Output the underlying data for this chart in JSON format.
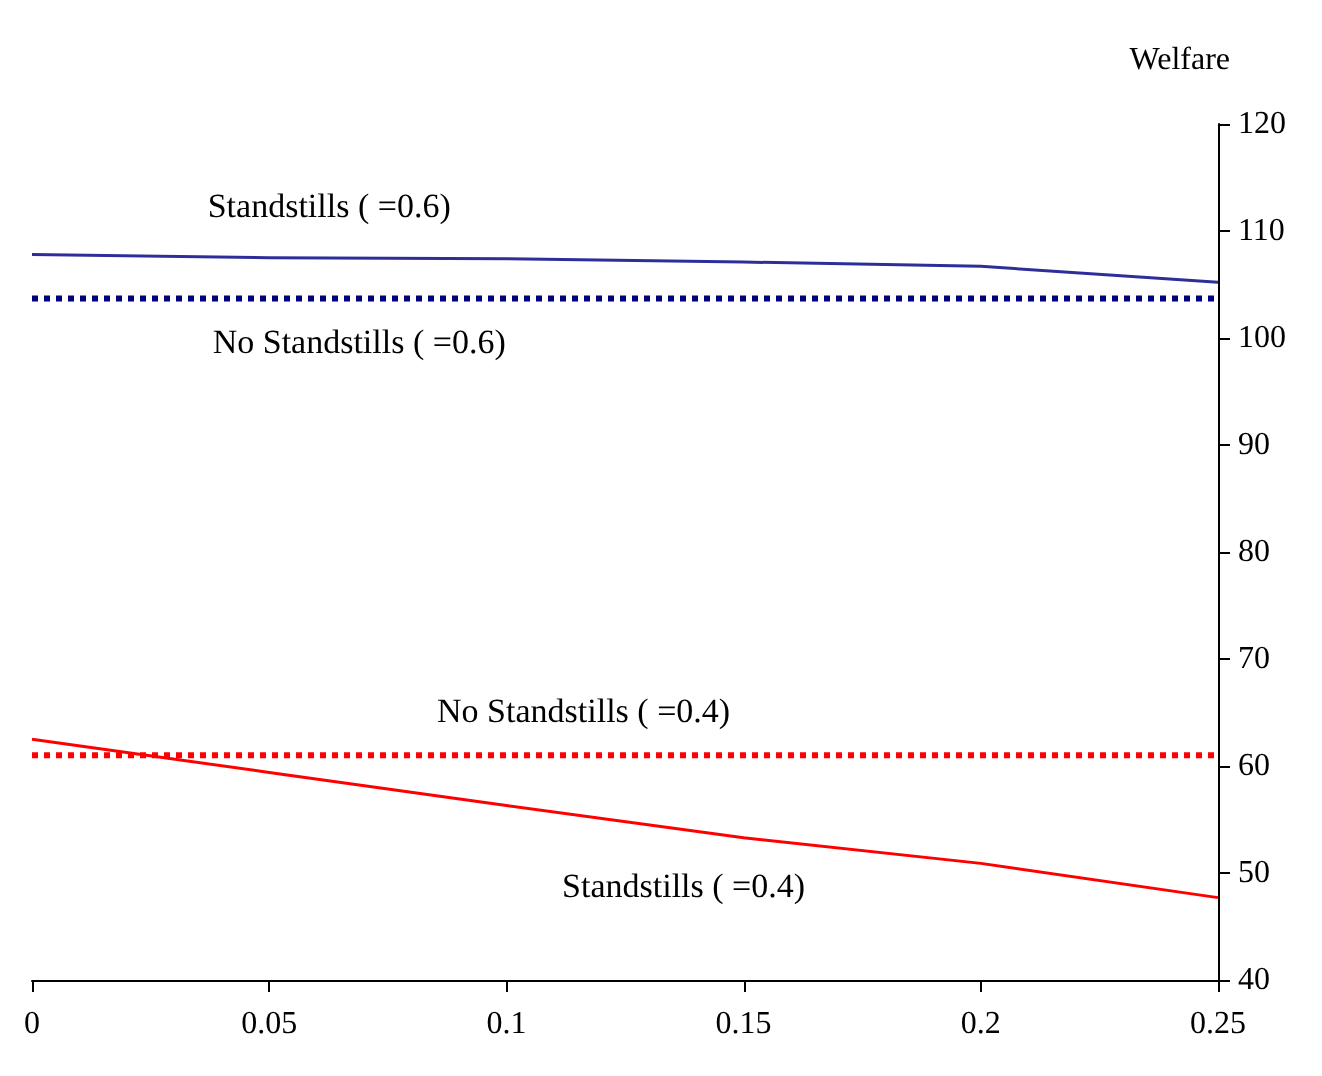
{
  "chart_data": {
    "type": "line",
    "ylabel": "Welfare",
    "x": [
      0,
      0.05,
      0.1,
      0.15,
      0.2,
      0.25
    ],
    "series": [
      {
        "name": "Standstills ( =0.6)",
        "color": "#2e2e9a",
        "line_style": "solid",
        "values": [
          107.8,
          107.5,
          107.4,
          107.1,
          106.7,
          105.2
        ]
      },
      {
        "name": "No Standstills ( =0.6)",
        "color": "#000080",
        "line_style": "dotted",
        "values": [
          103.7,
          103.7,
          103.7,
          103.7,
          103.7,
          103.7
        ]
      },
      {
        "name": "No Standstills ( =0.4)",
        "color": "#ff0000",
        "line_style": "dotted",
        "values": [
          61,
          61,
          61,
          61,
          61,
          61
        ]
      },
      {
        "name": "Standstills ( =0.4)",
        "color": "#ff0000",
        "line_style": "solid",
        "values": [
          62.5,
          59.4,
          56.3,
          53.3,
          50.9,
          47.7
        ]
      }
    ],
    "xlim": [
      0,
      0.25
    ],
    "xticks": [
      0,
      0.05,
      0.1,
      0.15,
      0.2,
      0.25
    ],
    "ylim": [
      40,
      120
    ],
    "yticks": [
      40,
      50,
      60,
      70,
      80,
      90,
      100,
      110,
      120
    ],
    "grid": false,
    "marker": "none"
  }
}
